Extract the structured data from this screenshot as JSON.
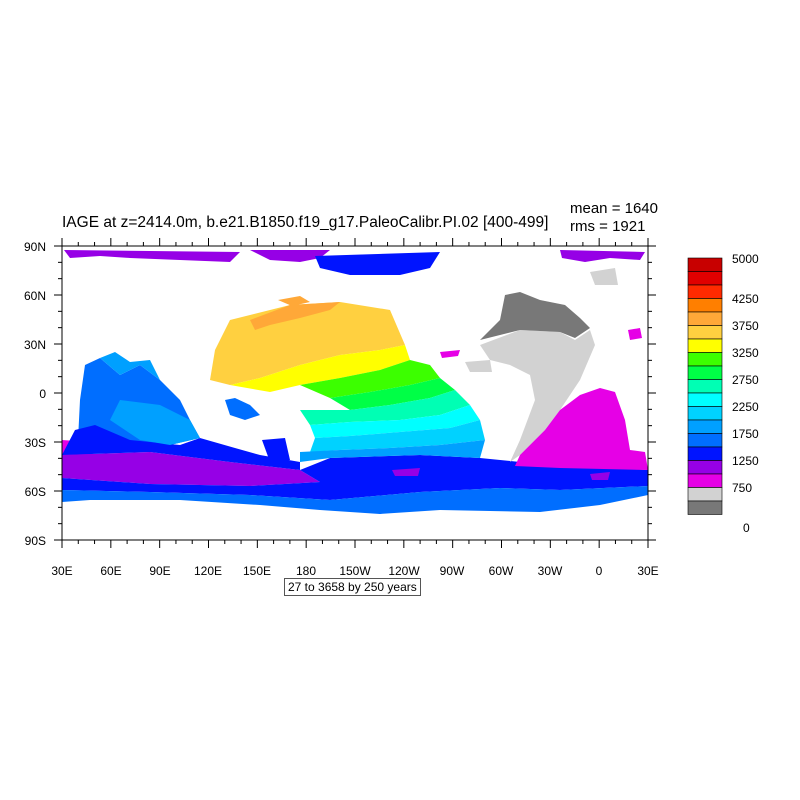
{
  "title": "IAGE at z=2414.0m, b.e21.B1850.f19_g17.PaleoCalibr.PI.02 [400-499]",
  "stats": {
    "mean": "mean = 1640",
    "rms": "rms = 1921"
  },
  "range_label": "27 to 3658 by 250 years",
  "lat_labels": [
    "90N",
    "60N",
    "30N",
    "0",
    "30S",
    "60S",
    "90S"
  ],
  "lon_labels": [
    "30E",
    "60E",
    "90E",
    "120E",
    "150E",
    "180",
    "150W",
    "120W",
    "90W",
    "60W",
    "30W",
    "0",
    "30E"
  ],
  "colorbar": {
    "labels": [
      "5000",
      "4250",
      "3750",
      "3250",
      "2750",
      "2250",
      "1750",
      "1250",
      "750",
      "0"
    ],
    "colors": [
      "#c80000",
      "#e00000",
      "#ff2a00",
      "#ff7f00",
      "#ffa838",
      "#ffd040",
      "#ffff00",
      "#3cff00",
      "#00ff46",
      "#00ffb4",
      "#00ffff",
      "#00d2ff",
      "#00a0ff",
      "#006eff",
      "#0014ff",
      "#9600e6",
      "#e600e6",
      "#d2d2d2",
      "#787878"
    ]
  },
  "colors": {
    "ocean_purple": "#9600e6",
    "ocean_blue": "#0014ff",
    "ocean_midblue": "#006eff",
    "ocean_skyblue": "#00a0ff",
    "ocean_lightblue": "#00d2ff",
    "ocean_cyan": "#00ffff",
    "ocean_aqua": "#00ffb4",
    "ocean_green": "#00ff46",
    "ocean_lime": "#3cff00",
    "ocean_yellow": "#ffff00",
    "ocean_gold": "#ffd040",
    "ocean_orange": "#ffa838",
    "ocean_magenta": "#e600e6",
    "ocean_lightgray": "#d2d2d2",
    "ocean_darkgray": "#787878"
  }
}
